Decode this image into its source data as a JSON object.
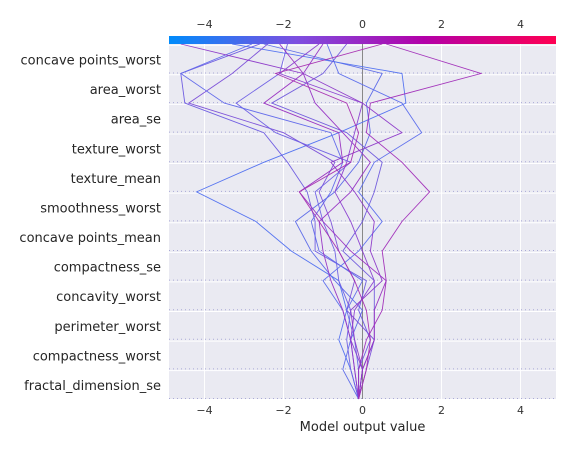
{
  "chart_data": {
    "type": "line",
    "subtype": "shap-decision-plot",
    "xlabel": "Model output value",
    "xlim": [
      -4.9,
      4.9
    ],
    "xticks": [
      -4,
      -2,
      0,
      2,
      4
    ],
    "base_value": 0,
    "grid": true,
    "colorbar": {
      "position": "top",
      "colors": [
        "#008bfb",
        "#7d4fe0",
        "#b300a8",
        "#ff0052"
      ]
    },
    "features": [
      "concave points_worst",
      "area_worst",
      "area_se",
      "texture_worst",
      "texture_mean",
      "smoothness_worst",
      "concave points_mean",
      "compactness_se",
      "concavity_worst",
      "perimeter_worst",
      "compactness_worst",
      "fractal_dimension_se"
    ],
    "series": [
      {
        "color": "#5a68e8",
        "values": [
          -0.1,
          -0.5,
          -0.3,
          0.0,
          -0.7,
          -1.3,
          -1.7,
          -0.7,
          -0.1,
          0.2,
          0.1,
          0.5,
          -2.5
        ]
      },
      {
        "color": "#4f6ff0",
        "values": [
          -0.1,
          -0.3,
          -0.6,
          -0.4,
          -0.6,
          -1.8,
          -2.7,
          -4.2,
          -2.5,
          -0.6,
          1.1,
          1.0,
          -3.3
        ]
      },
      {
        "color": "#6a57e0",
        "values": [
          -0.1,
          -0.1,
          0.2,
          -0.1,
          0.1,
          -1.2,
          -1.2,
          -1.4,
          -1.9,
          -2.5,
          -4.5,
          -4.6,
          -2.6
        ]
      },
      {
        "color": "#7a4ed8",
        "values": [
          -0.1,
          0.1,
          0.3,
          -0.4,
          -0.2,
          -0.6,
          -0.8,
          -1.1,
          -0.7,
          -2.0,
          -4.4,
          -3.3,
          -2.4
        ]
      },
      {
        "color": "#6d5ee4",
        "values": [
          -0.1,
          -0.3,
          -0.4,
          -0.3,
          -0.6,
          -0.7,
          -1.0,
          -1.2,
          -0.3,
          -2.2,
          -3.2,
          -2.1,
          -1.9
        ]
      },
      {
        "color": "#5f67ea",
        "values": [
          -0.1,
          -0.1,
          -0.2,
          -0.4,
          0.0,
          -1.1,
          -1.3,
          -0.8,
          -0.5,
          -0.8,
          -3.5,
          -4.6,
          -2.8
        ]
      },
      {
        "color": "#5a6bec",
        "values": [
          -0.1,
          -0.2,
          -0.3,
          -0.5,
          -1.0,
          -0.1,
          0.5,
          -0.1,
          0.3,
          1.5,
          1.0,
          -0.6,
          -0.9
        ]
      },
      {
        "color": "#6f58dc",
        "values": [
          -0.1,
          0.0,
          0.3,
          0.3,
          0.3,
          -0.5,
          0.0,
          0.3,
          0.5,
          -0.4,
          -2.3,
          -1.0,
          -0.4
        ]
      },
      {
        "color": "#8a3ed0",
        "values": [
          -0.1,
          0.0,
          -0.3,
          -0.2,
          0.3,
          0.0,
          -0.3,
          -0.7,
          -0.4,
          -0.2,
          0.0,
          -2.1,
          -1.1
        ]
      },
      {
        "color": "#a02cb8",
        "values": [
          -0.1,
          -0.1,
          0.1,
          0.5,
          0.6,
          0.5,
          1.0,
          1.7,
          1.0,
          0.1,
          0.2,
          3.0,
          0.6
        ]
      },
      {
        "color": "#982ec0",
        "values": [
          -0.1,
          0.0,
          0.3,
          0.3,
          0.6,
          -0.3,
          -1.0,
          -1.6,
          -0.5,
          -0.6,
          -2.5,
          -1.5,
          -2.1
        ]
      },
      {
        "color": "#9632c4",
        "values": [
          -0.1,
          -0.2,
          -0.3,
          -0.5,
          -0.8,
          -1.0,
          -1.1,
          -0.3,
          0.2,
          -0.5,
          -1.2,
          -1.5,
          -1.0
        ]
      },
      {
        "color": "#8c38c8",
        "values": [
          -0.1,
          0.0,
          -0.2,
          -0.3,
          0.5,
          0.2,
          0.3,
          -0.2,
          -0.8,
          1.0,
          0.0,
          -1.5,
          -4.6
        ]
      },
      {
        "color": "#a62cb0",
        "values": [
          -0.1,
          0.1,
          0.2,
          0.1,
          -0.2,
          -0.6,
          -1.1,
          -1.6,
          -0.3,
          -0.1,
          -0.4,
          -2.2,
          0.5
        ]
      }
    ]
  }
}
